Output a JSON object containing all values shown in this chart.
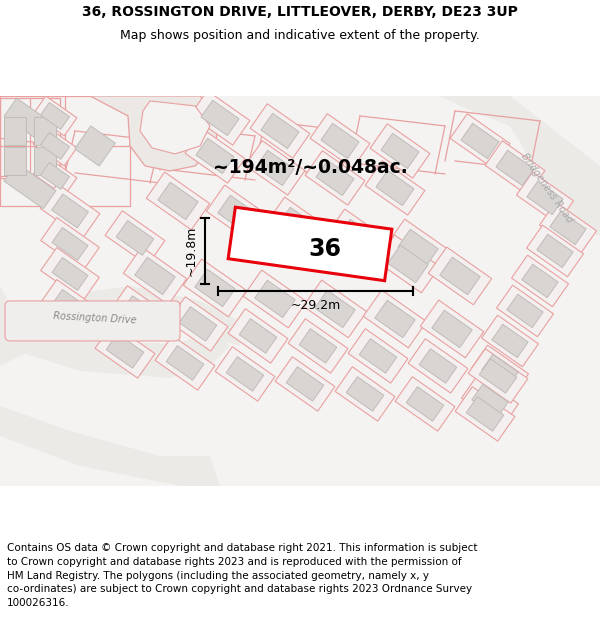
{
  "title_line1": "36, ROSSINGTON DRIVE, LITTLEOVER, DERBY, DE23 3UP",
  "title_line2": "Map shows position and indicative extent of the property.",
  "footer_lines": [
    "Contains OS data © Crown copyright and database right 2021. This information is subject",
    "to Crown copyright and database rights 2023 and is reproduced with the permission of",
    "HM Land Registry. The polygons (including the associated geometry, namely x, y",
    "co-ordinates) are subject to Crown copyright and database rights 2023 Ordnance Survey",
    "100026316."
  ],
  "area_label": "~194m²/~0.048ac.",
  "width_label": "~29.2m",
  "height_label": "~19.8m",
  "plot_number": "36",
  "map_bg": "#f5f3f1",
  "bld_fill": "#d8d5d2",
  "bld_edge": "#c0bcb8",
  "red_color": "#e8000a",
  "pink_color": "#e8a0a0",
  "pink_fill": "#f5eded",
  "road_label_color": "#999999",
  "title_fontsize": 10,
  "subtitle_fontsize": 9,
  "footer_fontsize": 7.5
}
